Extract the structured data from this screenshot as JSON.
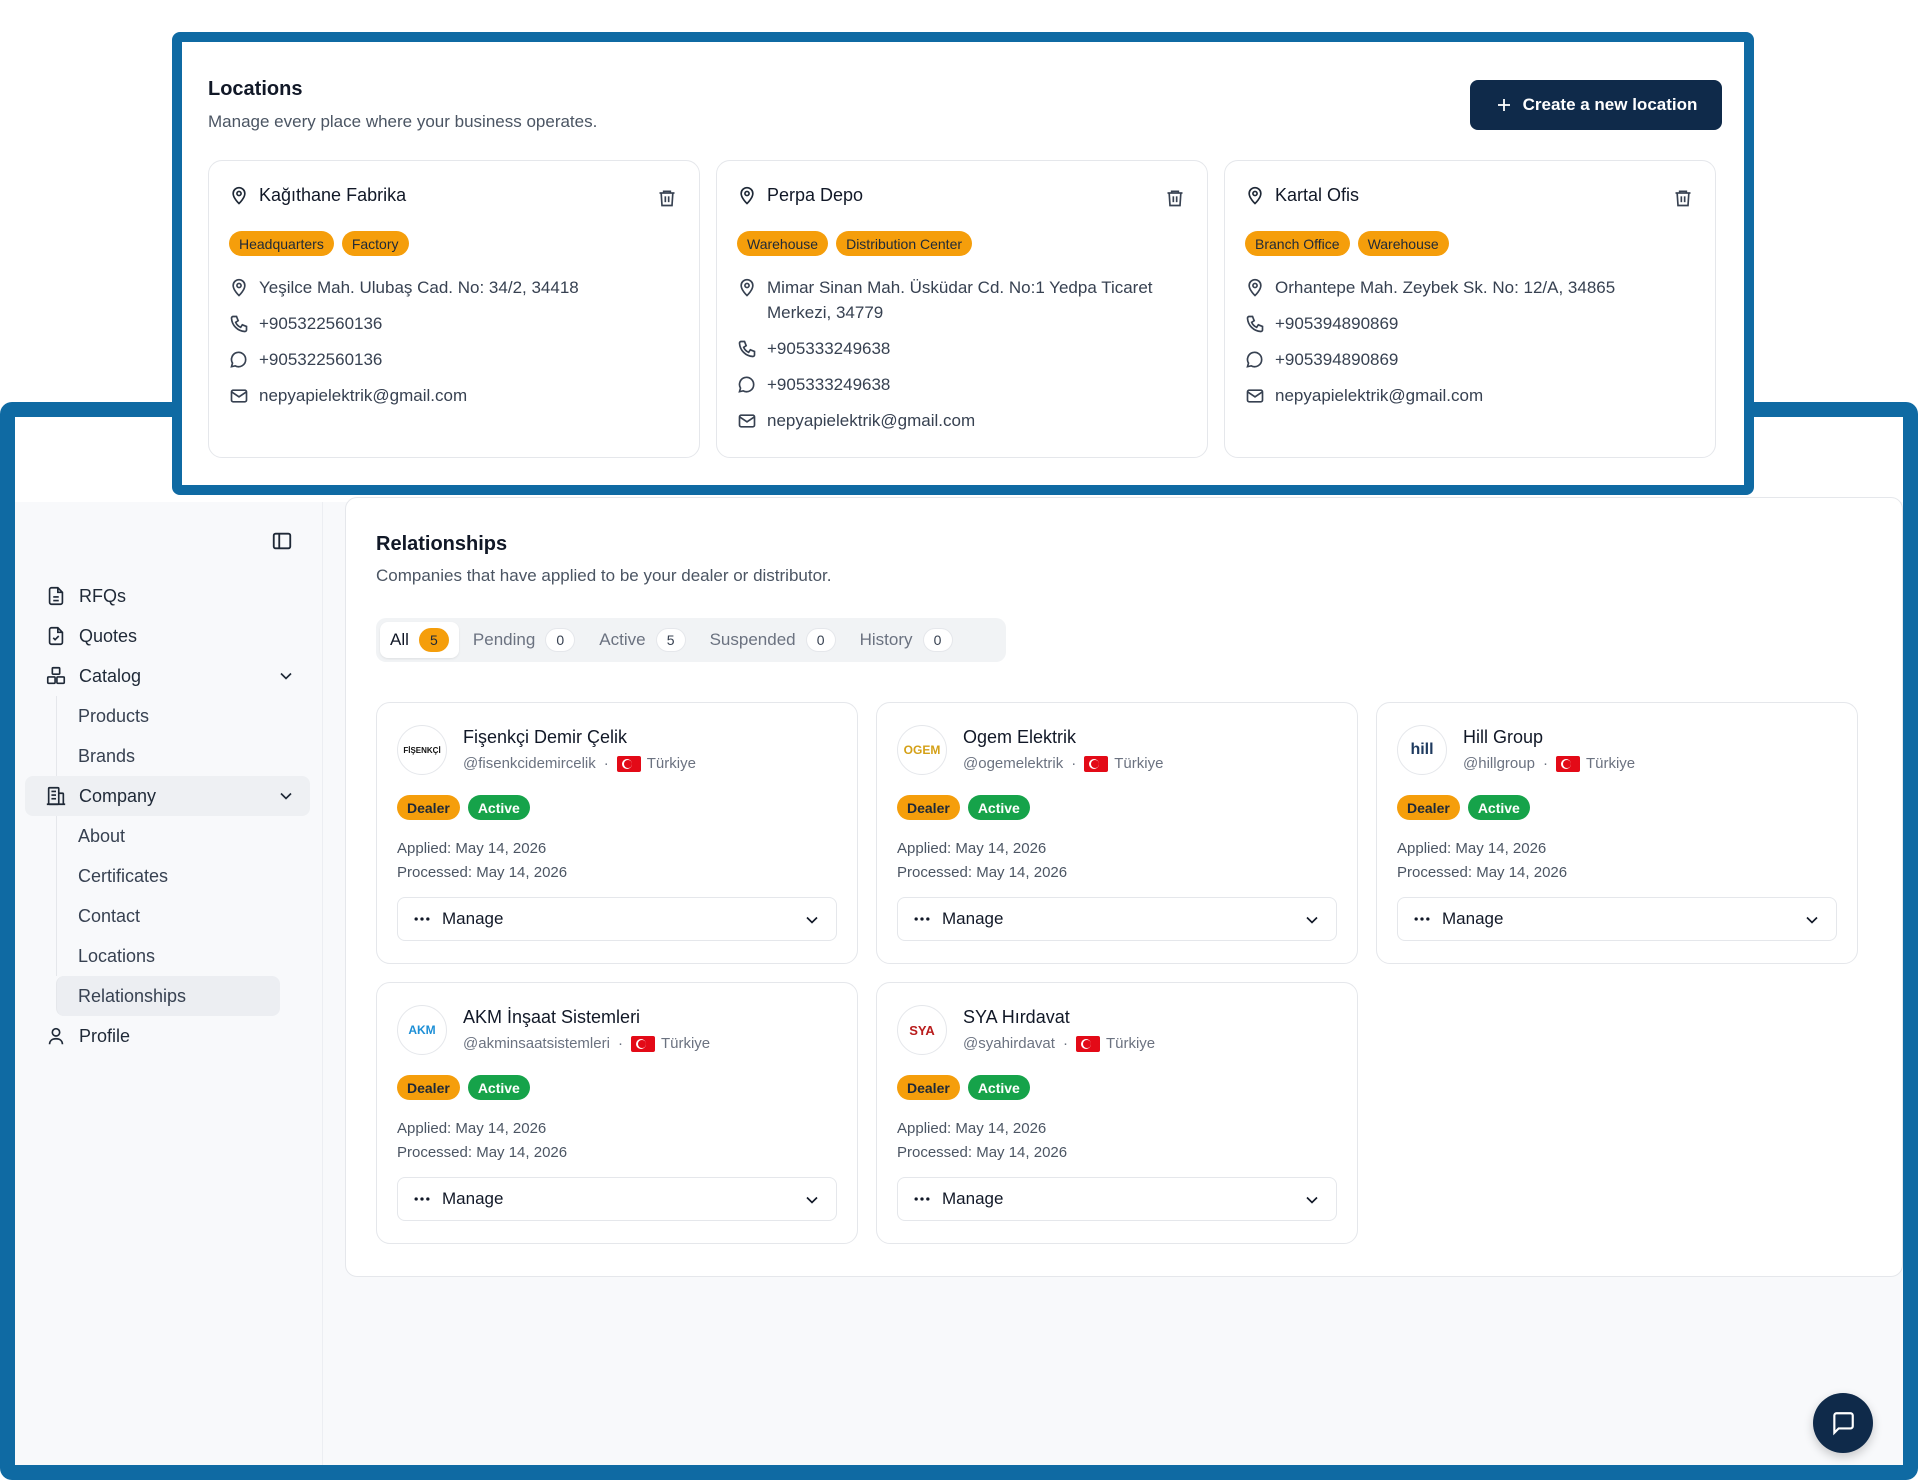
{
  "locations": {
    "title": "Locations",
    "subtitle": "Manage every place where your business operates.",
    "create_label": "Create a new location",
    "cards": [
      {
        "name": "Kağıthane Fabrika",
        "tags": [
          "Headquarters",
          "Factory"
        ],
        "address": "Yeşilce Mah. Ulubaş Cad. No: 34/2, 34418",
        "phone": "+905322560136",
        "whatsapp": "+905322560136",
        "email": "nepyapielektrik@gmail.com"
      },
      {
        "name": "Perpa Depo",
        "tags": [
          "Warehouse",
          "Distribution Center"
        ],
        "address": "Mimar Sinan Mah. Üsküdar Cd. No:1 Yedpa Ticaret Merkezi, 34779",
        "phone": "+905333249638",
        "whatsapp": "+905333249638",
        "email": "nepyapielektrik@gmail.com"
      },
      {
        "name": "Kartal Ofis",
        "tags": [
          "Branch Office",
          "Warehouse"
        ],
        "address": "Orhantepe Mah. Zeybek Sk. No: 12/A, 34865",
        "phone": "+905394890869",
        "whatsapp": "+905394890869",
        "email": "nepyapielektrik@gmail.com"
      }
    ]
  },
  "sidebar": {
    "items": [
      {
        "label": "RFQs",
        "icon": "file-text-icon"
      },
      {
        "label": "Quotes",
        "icon": "file-check-icon"
      },
      {
        "label": "Catalog",
        "icon": "boxes-icon",
        "children": [
          "Products",
          "Brands"
        ]
      },
      {
        "label": "Company",
        "icon": "building-icon",
        "children": [
          "About",
          "Certificates",
          "Contact",
          "Locations",
          "Relationships"
        ]
      },
      {
        "label": "Profile",
        "icon": "user-icon"
      }
    ],
    "active": "Relationships"
  },
  "relationships": {
    "title": "Relationships",
    "subtitle": "Companies that have applied to be your dealer or distributor.",
    "tabs": [
      {
        "label": "All",
        "count": "5",
        "active": true
      },
      {
        "label": "Pending",
        "count": "0"
      },
      {
        "label": "Active",
        "count": "5"
      },
      {
        "label": "Suspended",
        "count": "0"
      },
      {
        "label": "History",
        "count": "0"
      }
    ],
    "cards": [
      {
        "name": "Fişenkçi Demir Çelik",
        "handle": "@fisenkcidemircelik",
        "country": "Türkiye",
        "role": "Dealer",
        "status": "Active",
        "applied": "Applied: May 14, 2026",
        "processed": "Processed: May 14, 2026",
        "manage": "Manage",
        "logo": "FİŞENKÇİ"
      },
      {
        "name": "Ogem Elektrik",
        "handle": "@ogemelektrik",
        "country": "Türkiye",
        "role": "Dealer",
        "status": "Active",
        "applied": "Applied: May 14, 2026",
        "processed": "Processed: May 14, 2026",
        "manage": "Manage",
        "logo": "OGEM"
      },
      {
        "name": "Hill Group",
        "handle": "@hillgroup",
        "country": "Türkiye",
        "role": "Dealer",
        "status": "Active",
        "applied": "Applied: May 14, 2026",
        "processed": "Processed: May 14, 2026",
        "manage": "Manage",
        "logo": "hill"
      },
      {
        "name": "AKM İnşaat Sistemleri",
        "handle": "@akminsaatsistemleri",
        "country": "Türkiye",
        "role": "Dealer",
        "status": "Active",
        "applied": "Applied: May 14, 2026",
        "processed": "Processed: May 14, 2026",
        "manage": "Manage",
        "logo": "AKM"
      },
      {
        "name": "SYA Hırdavat",
        "handle": "@syahirdavat",
        "country": "Türkiye",
        "role": "Dealer",
        "status": "Active",
        "applied": "Applied: May 14, 2026",
        "processed": "Processed: May 14, 2026",
        "manage": "Manage",
        "logo": "SYA"
      }
    ]
  },
  "colors": {
    "frame": "#0f6aa3",
    "primary": "#0f2a4a",
    "orange": "#f59e0b",
    "green": "#16a34a"
  }
}
